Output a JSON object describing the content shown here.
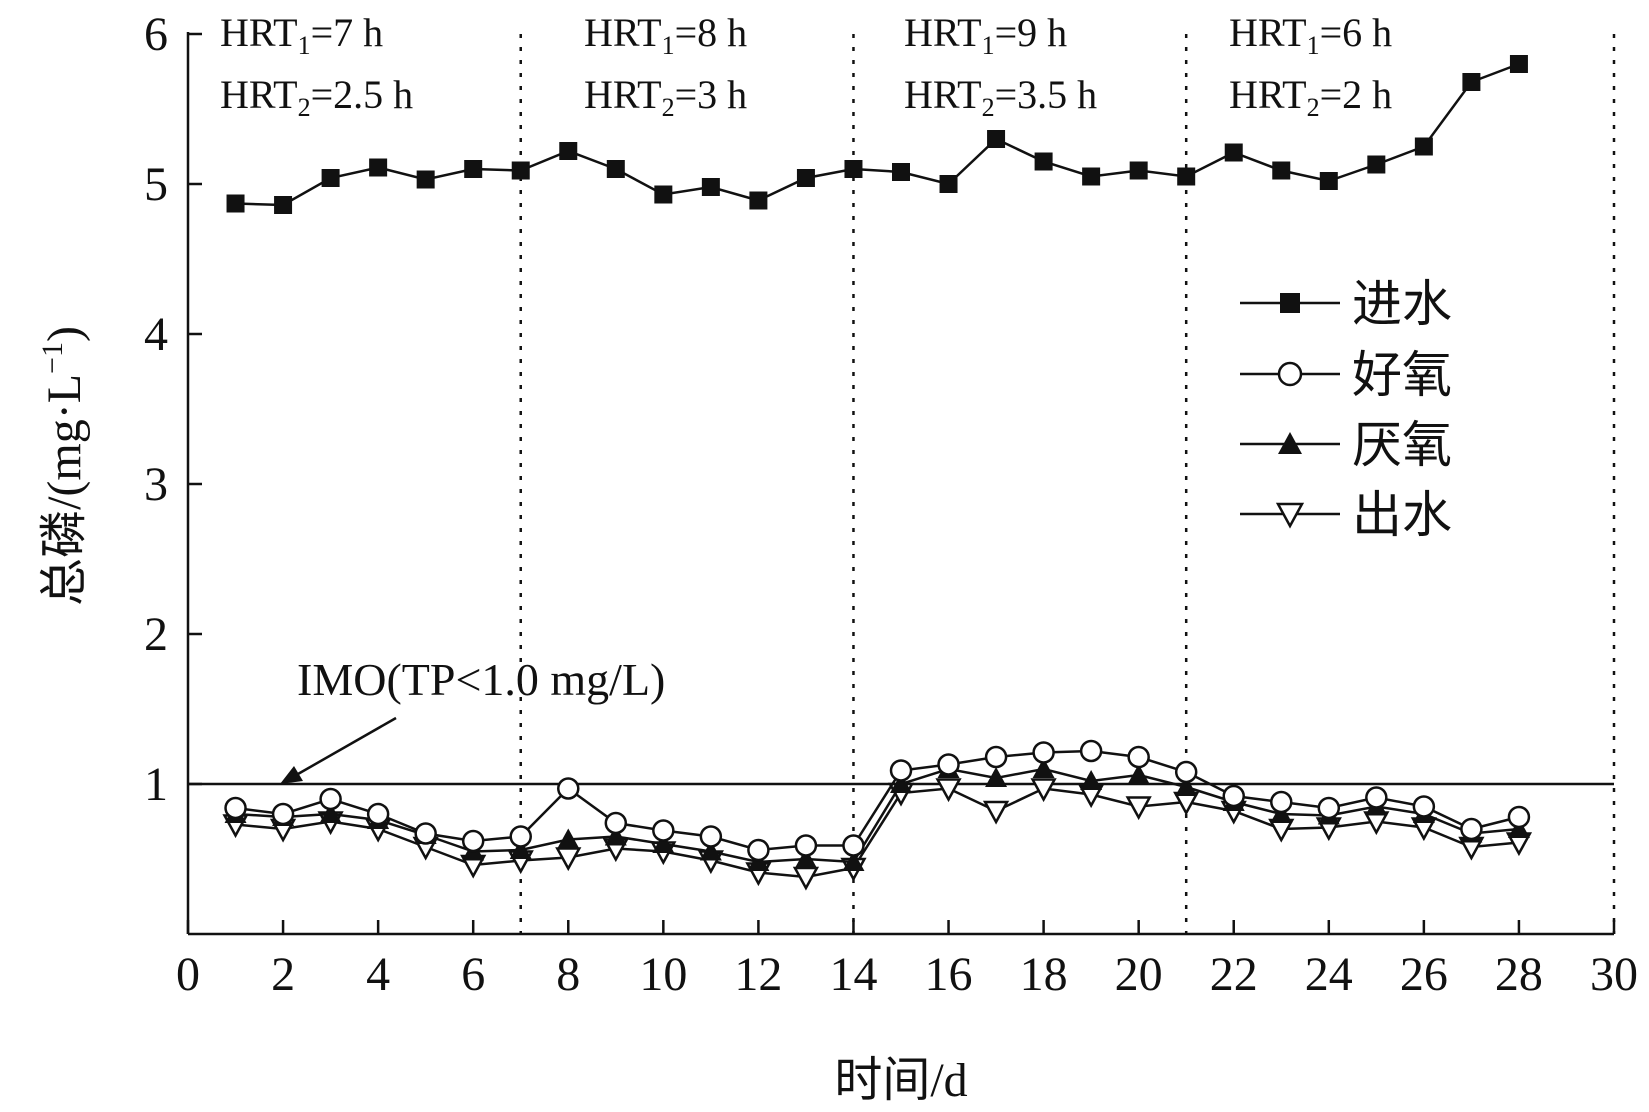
{
  "chart_data": {
    "type": "line",
    "xlabel": "时间/d",
    "ylabel": "总磷/(mg·L",
    "ylabel_sup": "−1",
    "ylabel_close": ")",
    "xlim": [
      0,
      30
    ],
    "ylim": [
      0,
      6
    ],
    "xticks": [
      0,
      2,
      4,
      6,
      8,
      10,
      12,
      14,
      16,
      18,
      20,
      22,
      24,
      26,
      28,
      30
    ],
    "yticks": [
      1,
      2,
      3,
      4,
      5,
      6
    ],
    "x": [
      1,
      2,
      3,
      4,
      5,
      6,
      7,
      8,
      9,
      10,
      11,
      12,
      13,
      14,
      15,
      16,
      17,
      18,
      19,
      20,
      21,
      22,
      23,
      24,
      25,
      26,
      27,
      28
    ],
    "series": [
      {
        "name": "进水",
        "marker": "square-filled",
        "values": [
          4.87,
          4.86,
          5.04,
          5.11,
          5.03,
          5.1,
          5.09,
          5.22,
          5.1,
          4.93,
          4.98,
          4.89,
          5.04,
          5.1,
          5.08,
          5.0,
          5.3,
          5.15,
          5.05,
          5.09,
          5.05,
          5.21,
          5.09,
          5.02,
          5.13,
          5.25,
          5.68,
          5.8
        ]
      },
      {
        "name": "好氧",
        "marker": "circle-open",
        "values": [
          0.84,
          0.8,
          0.9,
          0.8,
          0.67,
          0.62,
          0.65,
          0.97,
          0.74,
          0.69,
          0.65,
          0.56,
          0.59,
          0.59,
          1.09,
          1.13,
          1.18,
          1.21,
          1.22,
          1.18,
          1.08,
          0.92,
          0.88,
          0.84,
          0.91,
          0.85,
          0.7,
          0.78
        ]
      },
      {
        "name": "厌氧",
        "marker": "triangle-up-filled",
        "values": [
          0.8,
          0.78,
          0.8,
          0.76,
          0.66,
          0.55,
          0.56,
          0.63,
          0.65,
          0.6,
          0.55,
          0.48,
          0.5,
          0.48,
          1.0,
          1.1,
          1.04,
          1.1,
          1.02,
          1.06,
          0.98,
          0.88,
          0.8,
          0.79,
          0.85,
          0.8,
          0.67,
          0.7
        ]
      },
      {
        "name": "出水",
        "marker": "triangle-down-open",
        "values": [
          0.73,
          0.7,
          0.75,
          0.7,
          0.58,
          0.46,
          0.49,
          0.51,
          0.57,
          0.55,
          0.49,
          0.41,
          0.38,
          0.44,
          0.94,
          0.97,
          0.82,
          0.97,
          0.93,
          0.85,
          0.88,
          0.82,
          0.7,
          0.71,
          0.75,
          0.71,
          0.58,
          0.61
        ]
      }
    ],
    "reference_line": {
      "y": 1.0,
      "label": "IMO(TP<1.0 mg/L)"
    },
    "phase_dividers_x": [
      7,
      14,
      21,
      30
    ],
    "phases": [
      {
        "hrt1_value": "=7 h",
        "hrt2_value": "=2.5 h"
      },
      {
        "hrt1_value": "=8 h",
        "hrt2_value": "=3 h"
      },
      {
        "hrt1_value": "=9 h",
        "hrt2_value": "=3.5 h"
      },
      {
        "hrt1_value": "=6 h",
        "hrt2_value": "=2 h"
      }
    ],
    "hrt_prefix": "HRT",
    "hrt1_sub": "1",
    "hrt2_sub": "2",
    "legend_position": "right",
    "grid": false
  }
}
